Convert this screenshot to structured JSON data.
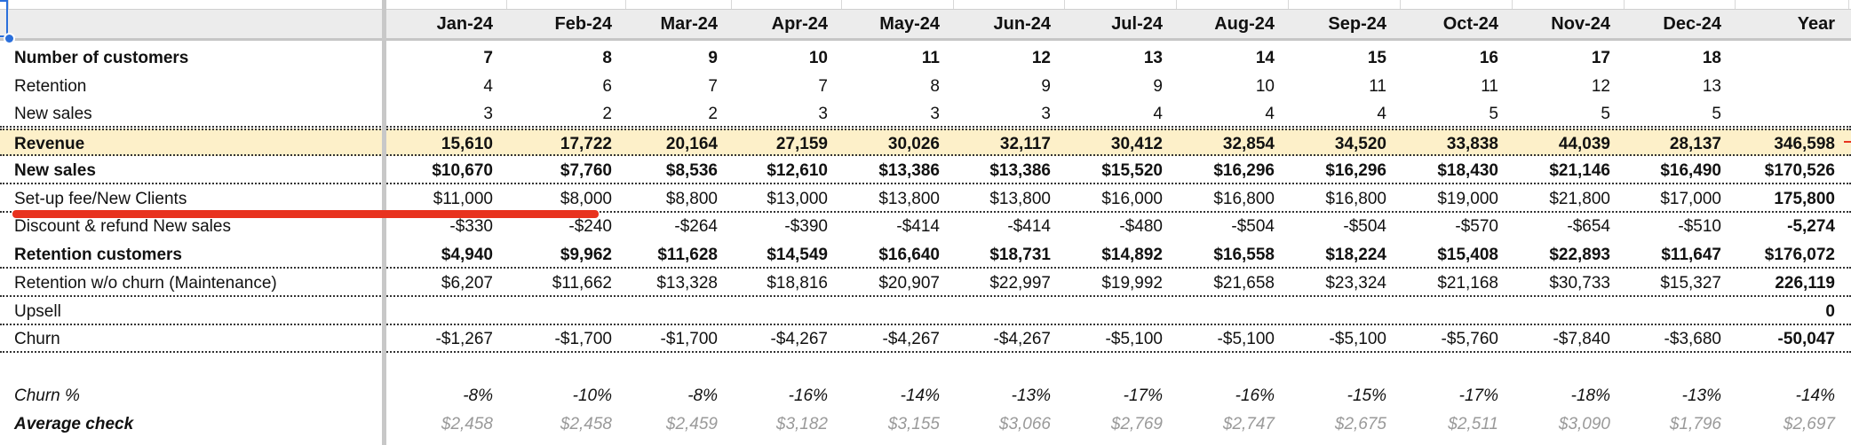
{
  "header": {
    "months": [
      "Jan-24",
      "Feb-24",
      "Mar-24",
      "Apr-24",
      "May-24",
      "Jun-24",
      "Jul-24",
      "Aug-24",
      "Sep-24",
      "Oct-24",
      "Nov-24",
      "Dec-24"
    ],
    "year_label": "Year"
  },
  "rows": [
    {
      "label": "Number of customers",
      "values": [
        "7",
        "8",
        "9",
        "10",
        "11",
        "12",
        "13",
        "14",
        "15",
        "16",
        "17",
        "18"
      ],
      "year": "",
      "bold": true
    },
    {
      "label": "Retention",
      "values": [
        "4",
        "6",
        "7",
        "7",
        "8",
        "9",
        "9",
        "10",
        "11",
        "11",
        "12",
        "13"
      ],
      "year": ""
    },
    {
      "label": "New sales",
      "values": [
        "3",
        "2",
        "2",
        "3",
        "3",
        "3",
        "4",
        "4",
        "4",
        "5",
        "5",
        "5"
      ],
      "year": ""
    },
    {
      "label": "Revenue",
      "values": [
        "15,610",
        "17,722",
        "20,164",
        "27,159",
        "30,026",
        "32,117",
        "30,412",
        "32,854",
        "34,520",
        "33,838",
        "44,039",
        "28,137"
      ],
      "year": "346,598",
      "bold": true,
      "highlight": true
    },
    {
      "label": "New sales",
      "values": [
        "$10,670",
        "$7,760",
        "$8,536",
        "$12,610",
        "$13,386",
        "$13,386",
        "$15,520",
        "$16,296",
        "$16,296",
        "$18,430",
        "$21,146",
        "$16,490"
      ],
      "year": "$170,526",
      "bold": true
    },
    {
      "label": "Set-up fee/New Clients",
      "values": [
        "$11,000",
        "$8,000",
        "$8,800",
        "$13,000",
        "$13,800",
        "$13,800",
        "$16,000",
        "$16,800",
        "$16,800",
        "$19,000",
        "$21,800",
        "$17,000"
      ],
      "year": "175,800",
      "year_bold": true
    },
    {
      "label": "Discount & refund New sales",
      "values": [
        "-$330",
        "-$240",
        "-$264",
        "-$390",
        "-$414",
        "-$414",
        "-$480",
        "-$504",
        "-$504",
        "-$570",
        "-$654",
        "-$510"
      ],
      "year": "-5,274",
      "year_bold": true
    },
    {
      "label": "Retention customers",
      "values": [
        "$4,940",
        "$9,962",
        "$11,628",
        "$14,549",
        "$16,640",
        "$18,731",
        "$14,892",
        "$16,558",
        "$18,224",
        "$15,408",
        "$22,893",
        "$11,647"
      ],
      "year": "$176,072",
      "bold": true
    },
    {
      "label": "Retention w/o churn (Maintenance)",
      "values": [
        "$6,207",
        "$11,662",
        "$13,328",
        "$18,816",
        "$20,907",
        "$22,997",
        "$19,992",
        "$21,658",
        "$23,324",
        "$21,168",
        "$30,733",
        "$15,327"
      ],
      "year": "226,119",
      "year_bold": true
    },
    {
      "label": "Upsell",
      "values": [
        "",
        "",
        "",
        "",
        "",
        "",
        "",
        "",
        "",
        "",
        "",
        ""
      ],
      "year": "0",
      "year_bold": true
    },
    {
      "label": "Churn",
      "values": [
        "-$1,267",
        "-$1,700",
        "-$1,700",
        "-$4,267",
        "-$4,267",
        "-$4,267",
        "-$5,100",
        "-$5,100",
        "-$5,100",
        "-$5,760",
        "-$7,840",
        "-$3,680"
      ],
      "year": "-50,047",
      "year_bold": true
    },
    {
      "label": "",
      "values": [
        "",
        "",
        "",
        "",
        "",
        "",
        "",
        "",
        "",
        "",
        "",
        ""
      ],
      "year": ""
    },
    {
      "label": "Churn %",
      "values": [
        "-8%",
        "-10%",
        "-8%",
        "-16%",
        "-14%",
        "-13%",
        "-17%",
        "-16%",
        "-15%",
        "-17%",
        "-18%",
        "-13%"
      ],
      "year": "-14%",
      "italic": true
    },
    {
      "label": "Average check",
      "values": [
        "$2,458",
        "$2,458",
        "$2,459",
        "$3,182",
        "$3,155",
        "$3,066",
        "$2,769",
        "$2,747",
        "$2,675",
        "$2,511",
        "$3,090",
        "$1,796"
      ],
      "year": "$2,697",
      "label_bold": true,
      "italic": true,
      "gray": true
    }
  ],
  "colors": {
    "highlight_row": "#fdf0c9",
    "annotation_red": "#e8321e",
    "selection_blue": "#2a6fdb",
    "header_bg": "#ececec"
  }
}
